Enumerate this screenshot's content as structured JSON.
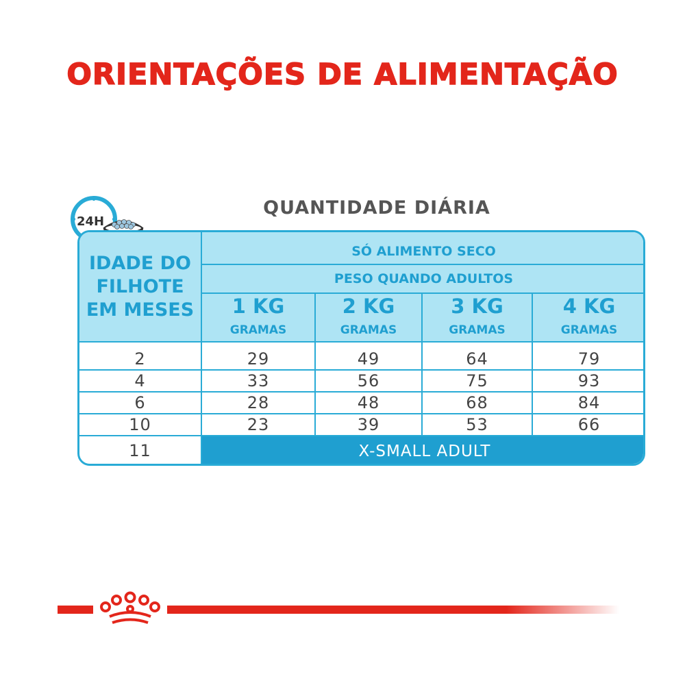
{
  "title": "ORIENTAÇÕES DE ALIMENTAÇÃO",
  "subtitle": "QUANTIDADE DIÁRIA",
  "icon": {
    "name": "24h-bowl-icon",
    "label": "24H"
  },
  "table": {
    "age_header": [
      "IDADE DO",
      "FILHOTE",
      "EM MESES"
    ],
    "dry_food_header": "SÓ ALIMENTO SECO",
    "adult_weight_header": "PESO QUANDO ADULTOS",
    "weights": [
      "1 KG",
      "2 KG",
      "3 KG",
      "4 KG"
    ],
    "unit": "GRAMAS",
    "rows": [
      {
        "age": "2",
        "values": [
          "29",
          "49",
          "64",
          "79"
        ]
      },
      {
        "age": "4",
        "values": [
          "33",
          "56",
          "75",
          "93"
        ]
      },
      {
        "age": "6",
        "values": [
          "28",
          "48",
          "68",
          "84"
        ]
      },
      {
        "age": "10",
        "values": [
          "23",
          "39",
          "53",
          "66"
        ]
      }
    ],
    "final_row": {
      "age": "11",
      "label": "X-SMALL ADULT"
    }
  },
  "colors": {
    "red": "#e3261b",
    "blue": "#29abd6",
    "light_blue": "#aee4f4"
  },
  "footer": {
    "logo": "royal-canin-crown-icon"
  }
}
